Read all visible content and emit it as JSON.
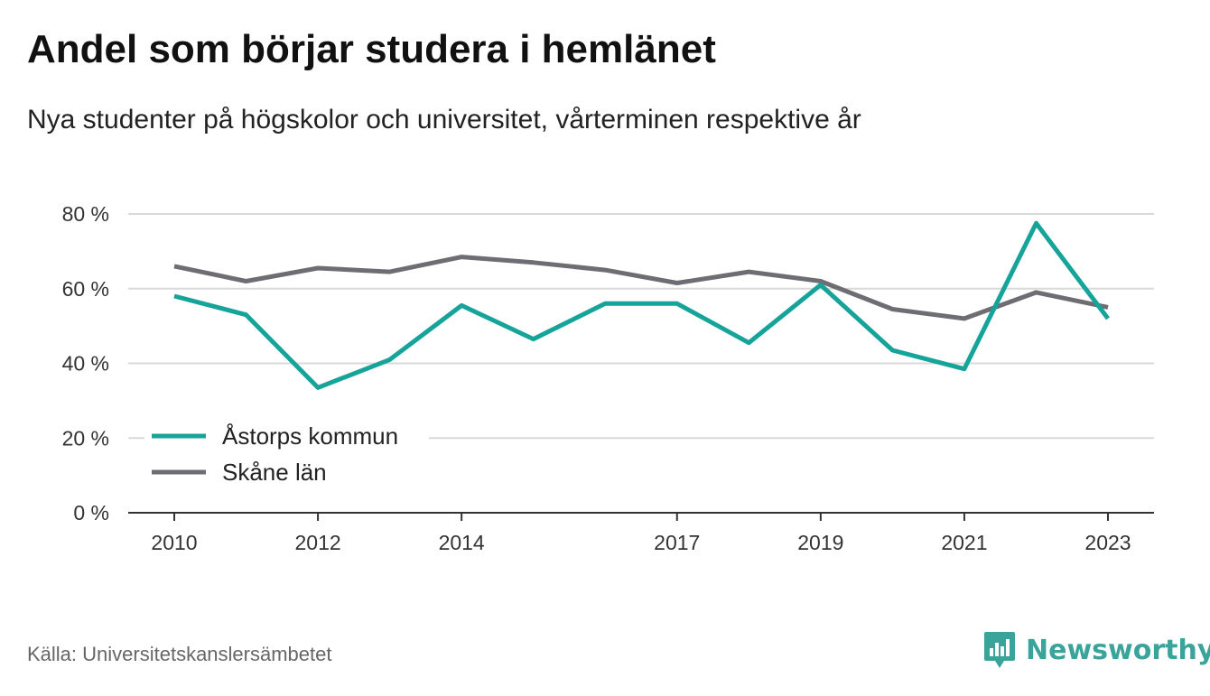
{
  "title": "Andel som börjar studera i hemlänet",
  "subtitle": "Nya studenter på högskolor och universitet, vårterminen respektive år",
  "source": "Källa: Universitetskanslersämbetet",
  "brand": {
    "name": "Newsworthy",
    "icon": "newsworthy-bar-chart-icon",
    "color": "#3aa39a"
  },
  "chart_data": {
    "type": "line",
    "x": [
      2010,
      2011,
      2012,
      2013,
      2014,
      2015,
      2016,
      2017,
      2018,
      2019,
      2020,
      2021,
      2022,
      2023
    ],
    "xticks": [
      2010,
      2012,
      2014,
      2017,
      2019,
      2021,
      2023
    ],
    "xtick_labels": [
      "2010",
      "2012",
      "2014",
      "2017",
      "2019",
      "2021",
      "2023"
    ],
    "ylim": [
      0,
      80
    ],
    "yticks": [
      0,
      20,
      40,
      60,
      80
    ],
    "ytick_labels": [
      "0 %",
      "20 %",
      "40 %",
      "60 %",
      "80 %"
    ],
    "grid": true,
    "legend_position": "bottom-left",
    "series": [
      {
        "name": "Åstorps kommun",
        "color": "#16a399",
        "values": [
          58,
          53,
          33.5,
          41,
          55.5,
          46.5,
          56,
          56,
          45.5,
          61,
          43.5,
          38.5,
          77.5,
          52
        ]
      },
      {
        "name": "Skåne län",
        "color": "#6e6d73",
        "values": [
          66,
          62,
          65.5,
          64.5,
          68.5,
          67,
          65,
          61.5,
          64.5,
          62,
          54.5,
          52,
          59,
          55
        ]
      }
    ]
  }
}
